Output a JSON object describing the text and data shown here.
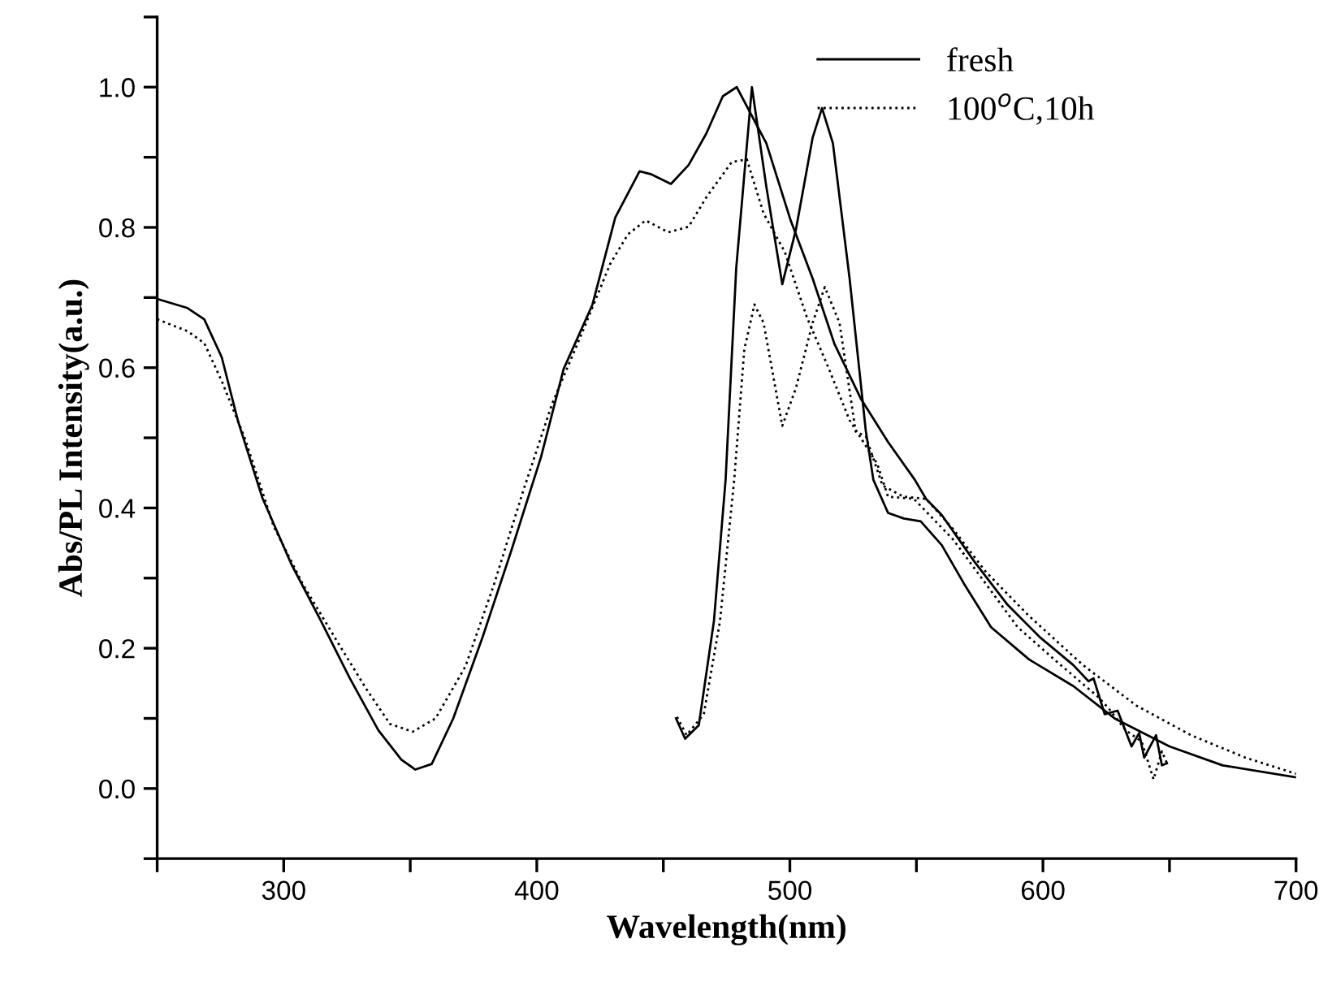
{
  "chart_data": {
    "type": "line",
    "xlabel": "Wavelength(nm)",
    "ylabel": "Abs/PL Intensity(a.u.)",
    "xlim": [
      250,
      700
    ],
    "ylim": [
      -0.1,
      1.1
    ],
    "xticks": [
      {
        "value": 250,
        "label": null
      },
      300,
      {
        "value": 350,
        "label": null
      },
      400,
      {
        "value": 450,
        "label": null
      },
      500,
      {
        "value": 550,
        "label": null
      },
      600,
      {
        "value": 650,
        "label": null
      },
      700
    ],
    "yticks": [
      {
        "value": -0.1,
        "label": null
      },
      {
        "value": 0,
        "label": "0.0"
      },
      {
        "value": 0.1,
        "label": null
      },
      {
        "value": 0.2,
        "label": "0.2"
      },
      {
        "value": 0.3,
        "label": null
      },
      {
        "value": 0.4,
        "label": "0.4"
      },
      {
        "value": 0.5,
        "label": null
      },
      {
        "value": 0.6,
        "label": "0.6"
      },
      {
        "value": 0.7,
        "label": null
      },
      {
        "value": 0.8,
        "label": "0.8"
      },
      {
        "value": 0.9,
        "label": null
      },
      {
        "value": 1.0,
        "label": "1.0"
      },
      {
        "value": 1.1,
        "label": null
      }
    ],
    "grid": false,
    "legend": "top right",
    "marker": "none",
    "series": [
      {
        "name": "fresh",
        "color": "#000000",
        "line_style": "solid",
        "x": [
          250,
          262,
          268.6,
          275.5,
          282,
          291.5,
          303,
          314.4,
          326,
          337.4,
          346.5,
          352,
          358.5,
          367,
          378.6,
          390,
          401.7,
          410.6,
          422,
          431,
          440.6,
          445,
          453,
          460,
          467,
          473.5,
          479,
          490.7,
          500.3,
          509,
          517.6,
          528,
          538.8,
          549.4,
          553.8,
          560,
          573,
          586,
          599,
          612,
          618,
          620,
          624.4,
          629.5,
          635,
          638,
          640,
          644.7,
          647,
          649
        ],
        "values": [
          0.698,
          0.685,
          0.669,
          0.615,
          0.523,
          0.415,
          0.32,
          0.241,
          0.158,
          0.083,
          0.041,
          0.027,
          0.035,
          0.1,
          0.216,
          0.34,
          0.473,
          0.598,
          0.69,
          0.814,
          0.88,
          0.876,
          0.862,
          0.889,
          0.934,
          0.987,
          1.0,
          0.92,
          0.81,
          0.727,
          0.634,
          0.556,
          0.494,
          0.44,
          0.413,
          0.39,
          0.323,
          0.262,
          0.215,
          0.176,
          0.153,
          0.157,
          0.106,
          0.111,
          0.06,
          0.079,
          0.044,
          0.076,
          0.033,
          0.036
        ]
      },
      {
        "color": "#000000",
        "line_style": "solid",
        "x": [
          455,
          458.6,
          464,
          470,
          474.6,
          478.8,
          485,
          490.7,
          497,
          502.4,
          509,
          512.7,
          517,
          523.6,
          530,
          533,
          538.8,
          545,
          551.7,
          560,
          568.8,
          579.5,
          594.5,
          612,
          628.7,
          650,
          671,
          700
        ],
        "values": [
          0.1,
          0.071,
          0.09,
          0.239,
          0.44,
          0.742,
          1.0,
          0.858,
          0.719,
          0.797,
          0.928,
          0.97,
          0.92,
          0.727,
          0.51,
          0.44,
          0.393,
          0.385,
          0.381,
          0.347,
          0.292,
          0.23,
          0.184,
          0.146,
          0.099,
          0.06,
          0.033,
          0.016
        ]
      },
      {
        "name": "100$^{o}$C,10h",
        "color": "#000000",
        "line_style": "dotted",
        "x": [
          250,
          262,
          268.6,
          275.5,
          284.7,
          296,
          307.6,
          321.4,
          332.8,
          342,
          351,
          360,
          371.8,
          383,
          394.6,
          406,
          417.7,
          429,
          436,
          443,
          452,
          460,
          467,
          477,
          483,
          489.6,
          498,
          506.7,
          515,
          523.6,
          534.5,
          538.8,
          549,
          564.5,
          577.4,
          590,
          607,
          622,
          626,
          632.7,
          639,
          643.7,
          647,
          649
        ],
        "values": [
          0.669,
          0.652,
          0.635,
          0.581,
          0.499,
          0.374,
          0.291,
          0.208,
          0.141,
          0.092,
          0.081,
          0.1,
          0.174,
          0.29,
          0.424,
          0.548,
          0.648,
          0.748,
          0.79,
          0.81,
          0.793,
          0.801,
          0.843,
          0.893,
          0.897,
          0.82,
          0.765,
          0.672,
          0.602,
          0.525,
          0.463,
          0.416,
          0.413,
          0.355,
          0.292,
          0.23,
          0.176,
          0.13,
          0.114,
          0.083,
          0.067,
          0.013,
          0.053,
          0.036
        ]
      },
      {
        "color": "#000000",
        "line_style": "dotted",
        "x": [
          455.4,
          459.2,
          466,
          472.4,
          478,
          482,
          486,
          489.6,
          497,
          502.4,
          509,
          513.8,
          519.6,
          526,
          530,
          536.6,
          545,
          553.8,
          564.5,
          577.4,
          594.5,
          615.8,
          637,
          658.5,
          680,
          700
        ],
        "values": [
          0.102,
          0.076,
          0.106,
          0.239,
          0.44,
          0.626,
          0.69,
          0.664,
          0.517,
          0.571,
          0.664,
          0.715,
          0.664,
          0.509,
          0.502,
          0.432,
          0.416,
          0.413,
          0.37,
          0.309,
          0.246,
          0.176,
          0.118,
          0.076,
          0.044,
          0.021
        ]
      }
    ]
  }
}
